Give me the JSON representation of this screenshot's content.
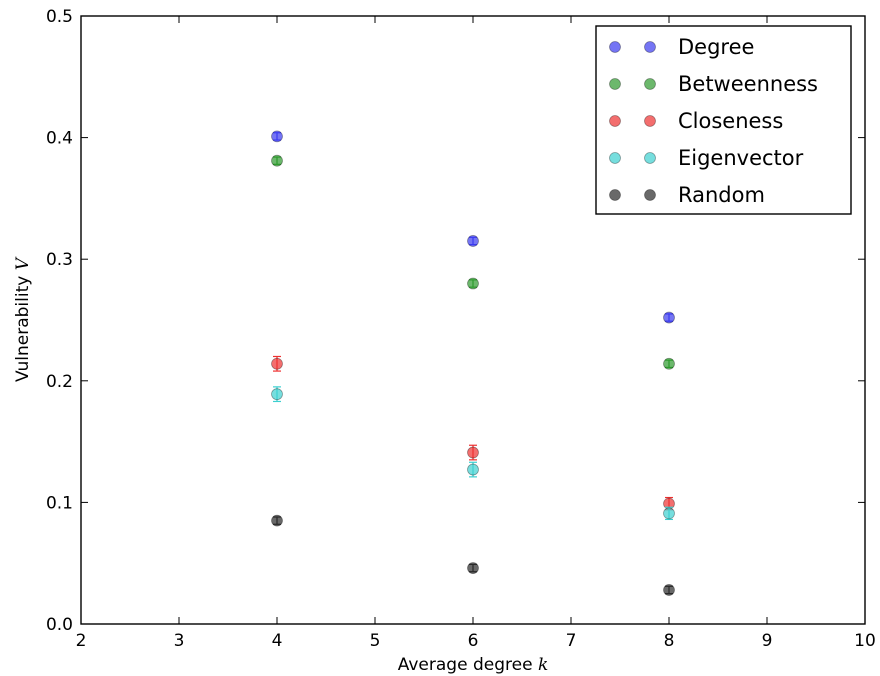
{
  "chart_data": {
    "type": "scatter",
    "xlabel": "Average degree",
    "xlabel_symbol": "k",
    "ylabel": "Vulnerability",
    "ylabel_symbol": "V",
    "xlim": [
      2,
      10
    ],
    "ylim": [
      0.0,
      0.5
    ],
    "xticks": [
      "2",
      "3",
      "4",
      "5",
      "6",
      "7",
      "8",
      "9",
      "10"
    ],
    "yticks": [
      "0.0",
      "0.1",
      "0.2",
      "0.3",
      "0.4",
      "0.5"
    ],
    "grid": false,
    "legend_position": "top-right",
    "x": [
      4,
      6,
      8
    ],
    "series": [
      {
        "name": "Degree",
        "color": "#3b3bf0",
        "values": [
          0.401,
          0.315,
          0.252
        ],
        "errors": [
          0.003,
          0.003,
          0.003
        ]
      },
      {
        "name": "Betweenness",
        "color": "#2e9a2e",
        "values": [
          0.381,
          0.28,
          0.214
        ],
        "errors": [
          0.003,
          0.003,
          0.003
        ]
      },
      {
        "name": "Closeness",
        "color": "#ee3030",
        "values": [
          0.214,
          0.141,
          0.099
        ],
        "errors": [
          0.006,
          0.006,
          0.005
        ]
      },
      {
        "name": "Eigenvector",
        "color": "#3cd0d0",
        "values": [
          0.189,
          0.127,
          0.091
        ],
        "errors": [
          0.006,
          0.006,
          0.005
        ]
      },
      {
        "name": "Random",
        "color": "#2a2a2a",
        "values": [
          0.085,
          0.046,
          0.028
        ],
        "errors": [
          0.003,
          0.003,
          0.003
        ]
      }
    ]
  }
}
